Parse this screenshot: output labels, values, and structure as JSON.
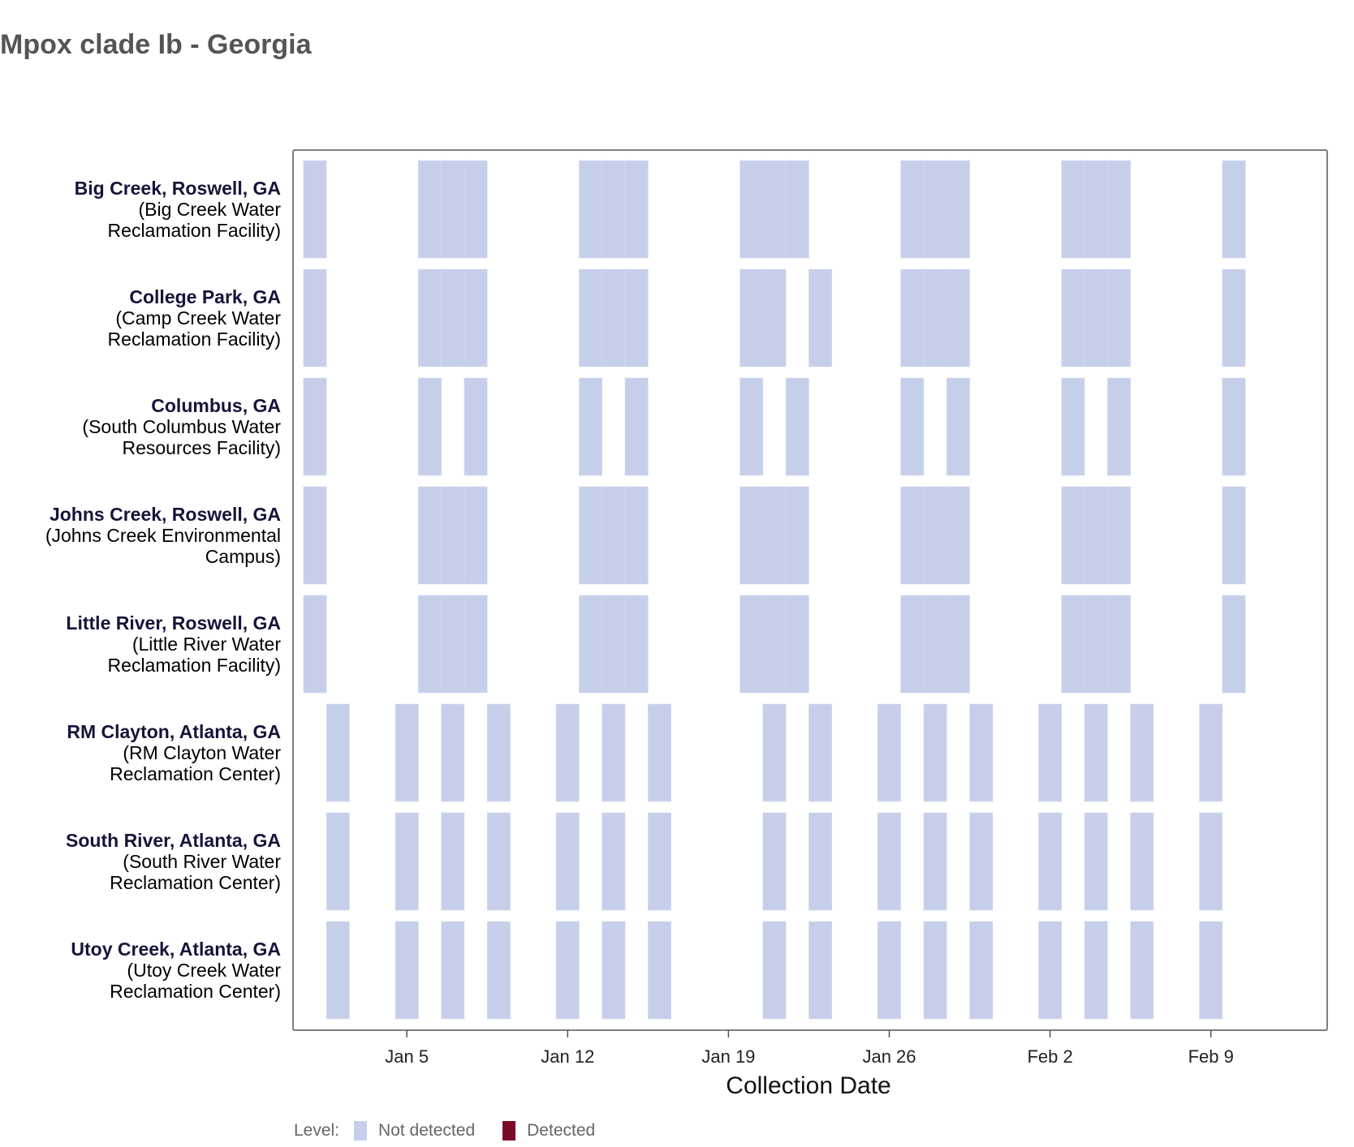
{
  "chart_data": {
    "type": "heatmap",
    "title": "Mpox clade Ib - Georgia",
    "xlabel": "Collection Date",
    "ylabel": "",
    "x_axis": {
      "type": "date",
      "range": [
        "2025-01-01",
        "2025-02-13"
      ],
      "ticks": [
        {
          "date": "2025-01-05",
          "label": "Jan 5"
        },
        {
          "date": "2025-01-12",
          "label": "Jan 12"
        },
        {
          "date": "2025-01-19",
          "label": "Jan 19"
        },
        {
          "date": "2025-01-26",
          "label": "Jan 26"
        },
        {
          "date": "2025-02-02",
          "label": "Feb 2"
        },
        {
          "date": "2025-02-09",
          "label": "Feb 9"
        }
      ]
    },
    "legend": {
      "title": "Level:",
      "position": "bottom-left",
      "items": [
        {
          "label": "Not detected",
          "color": "#c6cfea"
        },
        {
          "label": "Detected",
          "color": "#7b0a2a"
        }
      ]
    },
    "sites": [
      {
        "name": "Big Creek, Roswell, GA",
        "facility": "(Big Creek Water Reclamation Facility)",
        "samples": [
          {
            "date": "2025-01-01",
            "level": "Not detected"
          },
          {
            "date": "2025-01-06",
            "level": "Not detected"
          },
          {
            "date": "2025-01-07",
            "level": "Not detected"
          },
          {
            "date": "2025-01-08",
            "level": "Not detected"
          },
          {
            "date": "2025-01-13",
            "level": "Not detected"
          },
          {
            "date": "2025-01-14",
            "level": "Not detected"
          },
          {
            "date": "2025-01-15",
            "level": "Not detected"
          },
          {
            "date": "2025-01-20",
            "level": "Not detected"
          },
          {
            "date": "2025-01-21",
            "level": "Not detected"
          },
          {
            "date": "2025-01-22",
            "level": "Not detected"
          },
          {
            "date": "2025-01-27",
            "level": "Not detected"
          },
          {
            "date": "2025-01-28",
            "level": "Not detected"
          },
          {
            "date": "2025-01-29",
            "level": "Not detected"
          },
          {
            "date": "2025-02-03",
            "level": "Not detected"
          },
          {
            "date": "2025-02-04",
            "level": "Not detected"
          },
          {
            "date": "2025-02-05",
            "level": "Not detected"
          },
          {
            "date": "2025-02-10",
            "level": "Not detected"
          }
        ]
      },
      {
        "name": "College Park, GA",
        "facility": "(Camp Creek Water Reclamation Facility)",
        "samples": [
          {
            "date": "2025-01-01",
            "level": "Not detected"
          },
          {
            "date": "2025-01-06",
            "level": "Not detected"
          },
          {
            "date": "2025-01-07",
            "level": "Not detected"
          },
          {
            "date": "2025-01-08",
            "level": "Not detected"
          },
          {
            "date": "2025-01-13",
            "level": "Not detected"
          },
          {
            "date": "2025-01-14",
            "level": "Not detected"
          },
          {
            "date": "2025-01-15",
            "level": "Not detected"
          },
          {
            "date": "2025-01-20",
            "level": "Not detected"
          },
          {
            "date": "2025-01-21",
            "level": "Not detected"
          },
          {
            "date": "2025-01-23",
            "level": "Not detected"
          },
          {
            "date": "2025-01-27",
            "level": "Not detected"
          },
          {
            "date": "2025-01-28",
            "level": "Not detected"
          },
          {
            "date": "2025-01-29",
            "level": "Not detected"
          },
          {
            "date": "2025-02-03",
            "level": "Not detected"
          },
          {
            "date": "2025-02-04",
            "level": "Not detected"
          },
          {
            "date": "2025-02-05",
            "level": "Not detected"
          },
          {
            "date": "2025-02-10",
            "level": "Not detected"
          }
        ]
      },
      {
        "name": "Columbus, GA",
        "facility": "(South Columbus Water Resources Facility)",
        "samples": [
          {
            "date": "2025-01-01",
            "level": "Not detected"
          },
          {
            "date": "2025-01-06",
            "level": "Not detected"
          },
          {
            "date": "2025-01-08",
            "level": "Not detected"
          },
          {
            "date": "2025-01-13",
            "level": "Not detected"
          },
          {
            "date": "2025-01-15",
            "level": "Not detected"
          },
          {
            "date": "2025-01-20",
            "level": "Not detected"
          },
          {
            "date": "2025-01-22",
            "level": "Not detected"
          },
          {
            "date": "2025-01-27",
            "level": "Not detected"
          },
          {
            "date": "2025-01-29",
            "level": "Not detected"
          },
          {
            "date": "2025-02-03",
            "level": "Not detected"
          },
          {
            "date": "2025-02-05",
            "level": "Not detected"
          },
          {
            "date": "2025-02-10",
            "level": "Not detected"
          }
        ]
      },
      {
        "name": "Johns Creek, Roswell, GA",
        "facility": "(Johns Creek Environmental Campus)",
        "samples": [
          {
            "date": "2025-01-01",
            "level": "Not detected"
          },
          {
            "date": "2025-01-06",
            "level": "Not detected"
          },
          {
            "date": "2025-01-07",
            "level": "Not detected"
          },
          {
            "date": "2025-01-08",
            "level": "Not detected"
          },
          {
            "date": "2025-01-13",
            "level": "Not detected"
          },
          {
            "date": "2025-01-14",
            "level": "Not detected"
          },
          {
            "date": "2025-01-15",
            "level": "Not detected"
          },
          {
            "date": "2025-01-20",
            "level": "Not detected"
          },
          {
            "date": "2025-01-21",
            "level": "Not detected"
          },
          {
            "date": "2025-01-22",
            "level": "Not detected"
          },
          {
            "date": "2025-01-27",
            "level": "Not detected"
          },
          {
            "date": "2025-01-28",
            "level": "Not detected"
          },
          {
            "date": "2025-01-29",
            "level": "Not detected"
          },
          {
            "date": "2025-02-03",
            "level": "Not detected"
          },
          {
            "date": "2025-02-04",
            "level": "Not detected"
          },
          {
            "date": "2025-02-05",
            "level": "Not detected"
          },
          {
            "date": "2025-02-10",
            "level": "Not detected"
          }
        ]
      },
      {
        "name": "Little River, Roswell, GA",
        "facility": "(Little River Water Reclamation Facility)",
        "samples": [
          {
            "date": "2025-01-01",
            "level": "Not detected"
          },
          {
            "date": "2025-01-06",
            "level": "Not detected"
          },
          {
            "date": "2025-01-07",
            "level": "Not detected"
          },
          {
            "date": "2025-01-08",
            "level": "Not detected"
          },
          {
            "date": "2025-01-13",
            "level": "Not detected"
          },
          {
            "date": "2025-01-14",
            "level": "Not detected"
          },
          {
            "date": "2025-01-15",
            "level": "Not detected"
          },
          {
            "date": "2025-01-20",
            "level": "Not detected"
          },
          {
            "date": "2025-01-21",
            "level": "Not detected"
          },
          {
            "date": "2025-01-22",
            "level": "Not detected"
          },
          {
            "date": "2025-01-27",
            "level": "Not detected"
          },
          {
            "date": "2025-01-28",
            "level": "Not detected"
          },
          {
            "date": "2025-01-29",
            "level": "Not detected"
          },
          {
            "date": "2025-02-03",
            "level": "Not detected"
          },
          {
            "date": "2025-02-04",
            "level": "Not detected"
          },
          {
            "date": "2025-02-05",
            "level": "Not detected"
          },
          {
            "date": "2025-02-10",
            "level": "Not detected"
          }
        ]
      },
      {
        "name": "RM Clayton, Atlanta, GA",
        "facility": "(RM Clayton Water Reclamation Center)",
        "samples": [
          {
            "date": "2025-01-02",
            "level": "Not detected"
          },
          {
            "date": "2025-01-05",
            "level": "Not detected"
          },
          {
            "date": "2025-01-07",
            "level": "Not detected"
          },
          {
            "date": "2025-01-09",
            "level": "Not detected"
          },
          {
            "date": "2025-01-12",
            "level": "Not detected"
          },
          {
            "date": "2025-01-14",
            "level": "Not detected"
          },
          {
            "date": "2025-01-16",
            "level": "Not detected"
          },
          {
            "date": "2025-01-21",
            "level": "Not detected"
          },
          {
            "date": "2025-01-23",
            "level": "Not detected"
          },
          {
            "date": "2025-01-26",
            "level": "Not detected"
          },
          {
            "date": "2025-01-28",
            "level": "Not detected"
          },
          {
            "date": "2025-01-30",
            "level": "Not detected"
          },
          {
            "date": "2025-02-02",
            "level": "Not detected"
          },
          {
            "date": "2025-02-04",
            "level": "Not detected"
          },
          {
            "date": "2025-02-06",
            "level": "Not detected"
          },
          {
            "date": "2025-02-09",
            "level": "Not detected"
          }
        ]
      },
      {
        "name": "South River, Atlanta, GA",
        "facility": "(South River Water Reclamation Center)",
        "samples": [
          {
            "date": "2025-01-02",
            "level": "Not detected"
          },
          {
            "date": "2025-01-05",
            "level": "Not detected"
          },
          {
            "date": "2025-01-07",
            "level": "Not detected"
          },
          {
            "date": "2025-01-09",
            "level": "Not detected"
          },
          {
            "date": "2025-01-12",
            "level": "Not detected"
          },
          {
            "date": "2025-01-14",
            "level": "Not detected"
          },
          {
            "date": "2025-01-16",
            "level": "Not detected"
          },
          {
            "date": "2025-01-21",
            "level": "Not detected"
          },
          {
            "date": "2025-01-23",
            "level": "Not detected"
          },
          {
            "date": "2025-01-26",
            "level": "Not detected"
          },
          {
            "date": "2025-01-28",
            "level": "Not detected"
          },
          {
            "date": "2025-01-30",
            "level": "Not detected"
          },
          {
            "date": "2025-02-02",
            "level": "Not detected"
          },
          {
            "date": "2025-02-04",
            "level": "Not detected"
          },
          {
            "date": "2025-02-06",
            "level": "Not detected"
          },
          {
            "date": "2025-02-09",
            "level": "Not detected"
          }
        ]
      },
      {
        "name": "Utoy Creek, Atlanta, GA",
        "facility": "(Utoy Creek Water Reclamation Center)",
        "samples": [
          {
            "date": "2025-01-02",
            "level": "Not detected"
          },
          {
            "date": "2025-01-05",
            "level": "Not detected"
          },
          {
            "date": "2025-01-07",
            "level": "Not detected"
          },
          {
            "date": "2025-01-09",
            "level": "Not detected"
          },
          {
            "date": "2025-01-12",
            "level": "Not detected"
          },
          {
            "date": "2025-01-14",
            "level": "Not detected"
          },
          {
            "date": "2025-01-16",
            "level": "Not detected"
          },
          {
            "date": "2025-01-21",
            "level": "Not detected"
          },
          {
            "date": "2025-01-23",
            "level": "Not detected"
          },
          {
            "date": "2025-01-26",
            "level": "Not detected"
          },
          {
            "date": "2025-01-28",
            "level": "Not detected"
          },
          {
            "date": "2025-01-30",
            "level": "Not detected"
          },
          {
            "date": "2025-02-02",
            "level": "Not detected"
          },
          {
            "date": "2025-02-04",
            "level": "Not detected"
          },
          {
            "date": "2025-02-06",
            "level": "Not detected"
          },
          {
            "date": "2025-02-09",
            "level": "Not detected"
          }
        ]
      }
    ]
  }
}
